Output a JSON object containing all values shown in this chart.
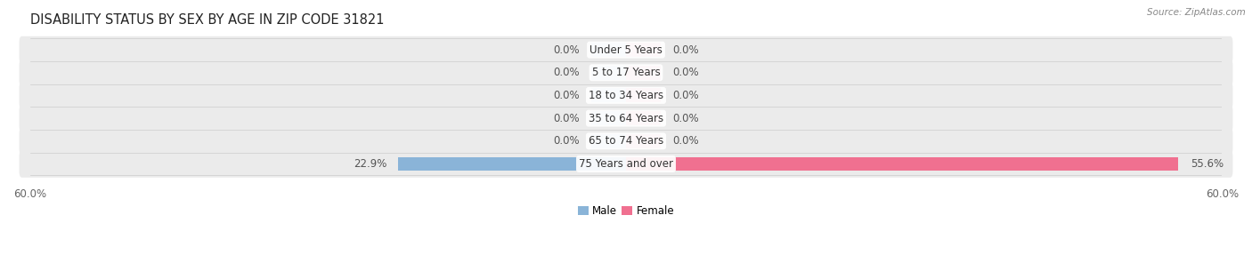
{
  "title": "DISABILITY STATUS BY SEX BY AGE IN ZIP CODE 31821",
  "source": "Source: ZipAtlas.com",
  "categories": [
    "Under 5 Years",
    "5 to 17 Years",
    "18 to 34 Years",
    "35 to 64 Years",
    "65 to 74 Years",
    "75 Years and over"
  ],
  "male_values": [
    0.0,
    0.0,
    0.0,
    0.0,
    0.0,
    22.9
  ],
  "female_values": [
    0.0,
    0.0,
    0.0,
    0.0,
    0.0,
    55.6
  ],
  "male_display": [
    0.0,
    0.0,
    0.0,
    0.0,
    0.0,
    22.9
  ],
  "female_display": [
    0.0,
    0.0,
    0.0,
    0.0,
    0.0,
    55.6
  ],
  "max_value": 60.0,
  "male_color": "#8ab4d8",
  "female_color": "#f07090",
  "male_color_light": "#b8d0e8",
  "female_color_light": "#f0a8bc",
  "row_bg_color": "#ebebeb",
  "bar_height": 0.62,
  "min_bar_width": 3.5,
  "title_fontsize": 10.5,
  "label_fontsize": 8.5,
  "tick_fontsize": 8.5,
  "figsize": [
    14.06,
    3.05
  ]
}
